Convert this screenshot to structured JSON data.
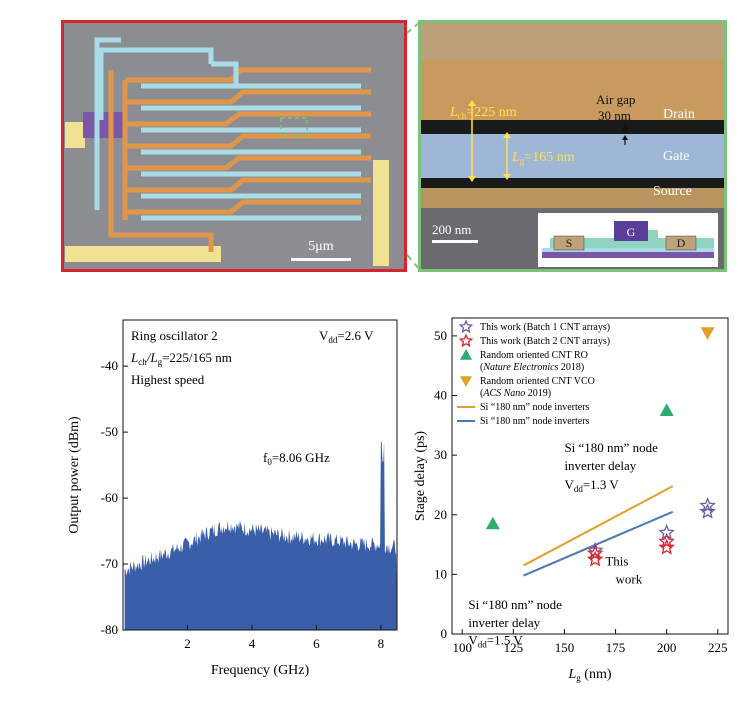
{
  "sem_image": {
    "scale_bar": "5μm",
    "frame_color": "#d9232d"
  },
  "tem_image": {
    "lch_label": "=225 nm",
    "lch_sub": "ch",
    "lg_label": "=165 nm",
    "lg_sub": "g",
    "air_gap_line1": "Air gap",
    "air_gap_line2": "30 nm",
    "drain": "Drain",
    "gate": "Gate",
    "source": "Source",
    "scale_bar": "200 nm",
    "inset_s": "S",
    "inset_g": "G",
    "inset_d": "D",
    "frame_color": "#7dc27a"
  },
  "chart_data": [
    {
      "type": "area",
      "xlabel": "Frequency (GHz)",
      "ylabel": "Output power (dBm)",
      "xlim": [
        0,
        8.5
      ],
      "ylim": [
        -80,
        -33
      ],
      "xticks": [
        2,
        4,
        6,
        8
      ],
      "yticks": [
        -40,
        -50,
        -60,
        -70,
        -80
      ],
      "annotations": {
        "line1": "Ring oscillator 2",
        "line2_a": "L",
        "line2_a_sub": "ch",
        "line2_b": "/L",
        "line2_b_sub": "g",
        "line2_c": "=225/165 nm",
        "line3": "Highest speed",
        "vdd_prefix": "V",
        "vdd_sub": "dd",
        "vdd_value": "=2.6 V",
        "peak_prefix": "f",
        "peak_sub": "0",
        "peak_value": "=8.06 GHz"
      },
      "noise_floor": [
        [
          0.0,
          -71.0
        ],
        [
          0.5,
          -70.0
        ],
        [
          1.0,
          -69.0
        ],
        [
          1.5,
          -68.0
        ],
        [
          2.0,
          -67.0
        ],
        [
          2.5,
          -65.5
        ],
        [
          3.0,
          -64.5
        ],
        [
          3.3,
          -64.0
        ],
        [
          3.7,
          -64.5
        ],
        [
          4.2,
          -65.0
        ],
        [
          4.7,
          -65.5
        ],
        [
          5.2,
          -65.8
        ],
        [
          5.7,
          -66.0
        ],
        [
          6.2,
          -66.2
        ],
        [
          6.7,
          -66.5
        ],
        [
          7.2,
          -67.0
        ],
        [
          7.7,
          -67.0
        ],
        [
          8.0,
          -67.0
        ],
        [
          8.5,
          -67.5
        ]
      ],
      "peak": {
        "x": 8.06,
        "y": -54.5
      },
      "fill_color": "#3a5ea8"
    },
    {
      "type": "scatter",
      "xlabel": "L",
      "xlabel_sub": "g",
      "xlabel_unit": " (nm)",
      "ylabel": "Stage delay (ps)",
      "xlim": [
        95,
        230
      ],
      "ylim": [
        0,
        53
      ],
      "xticks": [
        100,
        125,
        150,
        175,
        200,
        225
      ],
      "yticks": [
        0,
        10,
        20,
        30,
        40,
        50
      ],
      "legend": [
        {
          "label": "This work (Batch 1 CNT arrays)",
          "marker": "star",
          "color": "#6f5aa8"
        },
        {
          "label": "This work (Batch 2 CNT arrays)",
          "marker": "star",
          "color": "#d9232d"
        },
        {
          "label": "Random oriented CNT RO",
          "label_b_prefix": "(",
          "label_b_italic": "Nature Electronics",
          "label_b_suffix": " 2018)",
          "marker": "triangle-up",
          "color": "#2eab6e"
        },
        {
          "label": "Random oriented CNT VCO",
          "label_b_prefix": "(",
          "label_b_italic": "ACS Nano",
          "label_b_suffix": " 2019)",
          "marker": "triangle-down",
          "color": "#e0a02a"
        },
        {
          "label": "Si “180 nm” node inverters",
          "marker": "line",
          "color": "#e0a02a"
        },
        {
          "label": "Si “180 nm” node inverters",
          "marker": "line",
          "color": "#4a7ab5"
        }
      ],
      "series": [
        {
          "name": "This work (Batch 1 CNT arrays)",
          "marker": "star",
          "color": "#6f5aa8",
          "points": [
            [
              165,
              14
            ],
            [
              200,
              17
            ],
            [
              220,
              20.5
            ],
            [
              220,
              21.5
            ]
          ]
        },
        {
          "name": "This work (Batch 2 CNT arrays)",
          "marker": "star",
          "color": "#d9232d",
          "points": [
            [
              165,
              12.5
            ],
            [
              165,
              13.5
            ],
            [
              200,
              14.5
            ],
            [
              200,
              15.5
            ]
          ]
        },
        {
          "name": "Random oriented CNT RO",
          "marker": "triangle-up",
          "color": "#2eab6e",
          "points": [
            [
              115,
              18.5
            ],
            [
              200,
              37.5
            ]
          ]
        },
        {
          "name": "Random oriented CNT VCO",
          "marker": "triangle-down",
          "color": "#e0a02a",
          "points": [
            [
              220,
              50.5
            ]
          ]
        }
      ],
      "lines": [
        {
          "name": "Si “180 nm” node inverters",
          "color": "#e0a02a",
          "points": [
            [
              130,
              11.5
            ],
            [
              203,
              24.8
            ]
          ]
        },
        {
          "name": "Si “180 nm” node inverters",
          "color": "#4a7ab5",
          "points": [
            [
              130,
              9.8
            ],
            [
              203,
              20.5
            ]
          ]
        }
      ],
      "annotations": {
        "upper_line1": "Si “180 nm” node",
        "upper_line2": "inverter delay",
        "upper_vdd_prefix": "V",
        "upper_vdd_sub": "dd",
        "upper_vdd_value": "=1.3 V",
        "this_work_1": "This",
        "this_work_2": "work",
        "lower_line1": "Si “180 nm” node",
        "lower_line2": "inverter delay",
        "lower_vdd_prefix": "V",
        "lower_vdd_sub": "dd",
        "lower_vdd_value": "=1.5 V"
      }
    }
  ]
}
